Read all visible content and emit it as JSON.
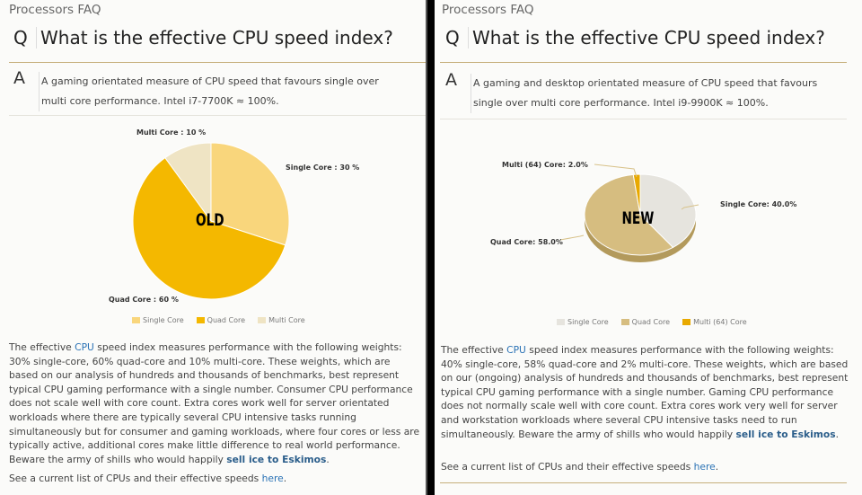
{
  "left": {
    "crumb": "Processors FAQ",
    "q_letter": "Q",
    "question": "What is the effective CPU speed index?",
    "a_letter": "A",
    "answer": "A gaming orientated measure of CPU speed that favours single over multi core performance. Intel i7-7700K ≈ 100%.",
    "stamp": "OLD",
    "body_pre": "The effective ",
    "body_link": "CPU",
    "body_mid": " speed index measures performance with the following weights: 30% single-core, 60% quad-core and 10% multi-core. These weights, which are based on our analysis of hundreds and thousands of benchmarks, best represent typical CPU gaming performance with a single number. Consumer CPU performance does not scale well with core count. Extra cores work well for server orientated workloads where there are typically several CPU intensive tasks running simultaneously but for consumer and gaming workloads, where four cores or less are typically active, additional cores make little difference to real world performance. Beware the army of shills who would happily ",
    "body_link2": "sell ice to Eskimos",
    "body_end": ".",
    "see_pre": "See a current list of CPUs and their effective speeds ",
    "see_link": "here",
    "see_end": "."
  },
  "right": {
    "crumb": "Processors FAQ",
    "q_letter": "Q",
    "question": "What is the effective CPU speed index?",
    "a_letter": "A",
    "answer": "A gaming and desktop orientated measure of CPU speed that favours single over multi core performance. Intel i9-9900K ≈ 100%.",
    "stamp": "NEW",
    "body_pre": "The effective ",
    "body_link": "CPU",
    "body_mid": " speed index measures performance with the following weights: 40% single-core, 58% quad-core and 2% multi-core. These weights, which are based on our (ongoing) analysis of hundreds and thousands of benchmarks, best represent typical CPU gaming performance with a single number. Gaming CPU performance does not normally scale well with core count. Extra cores work very well for server and workstation workloads where several CPU intensive tasks need to run simultaneously. Beware the army of shills who would happily ",
    "body_link2": "sell ice to Eskimos",
    "body_end": ".",
    "see_pre": "See a current list of CPUs and their effective speeds ",
    "see_link": "here",
    "see_end": "."
  },
  "chart_data": [
    {
      "type": "pie",
      "categories": [
        "Single Core",
        "Quad Core",
        "Multi Core"
      ],
      "values": [
        30,
        60,
        10
      ],
      "labels": [
        "Single Core : 30 %",
        "Quad Core : 60 %",
        "Multi Core : 10 %"
      ],
      "colors": [
        "#f9d67c",
        "#f4b800",
        "#efe4c4"
      ],
      "legend": "bottom"
    },
    {
      "type": "pie",
      "style": "3d",
      "categories": [
        "Single Core",
        "Quad Core",
        "Multi (64) Core"
      ],
      "values": [
        40,
        58,
        2
      ],
      "labels": [
        "Single Core: 40.0%",
        "Quad Core: 58.0%",
        "Multi (64) Core: 2.0%"
      ],
      "colors": [
        "#e6e4de",
        "#d6bd80",
        "#e8a900"
      ],
      "legend": "bottom"
    }
  ]
}
